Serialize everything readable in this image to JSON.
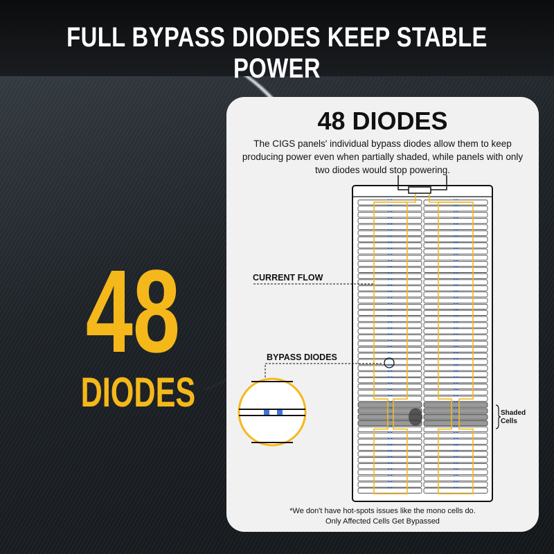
{
  "header": {
    "title": "FULL BYPASS DIODES KEEP STABLE POWER"
  },
  "hero": {
    "number": "48",
    "label": "DIODES",
    "color": "#f5b81a"
  },
  "card": {
    "title": "48 DIODES",
    "description": "The CIGS panels' individual bypass diodes allow them to keep producing power even when partially shaded, while panels with only two diodes would stop powering.",
    "footnote_line1": "*We don't have hot-spots issues like the mono cells do.",
    "footnote_line2": "Only Affected Cells Get Bypassed"
  },
  "diagram": {
    "label_current_flow": "CURRENT FLOW",
    "label_bypass_diodes": "BYPASS DIODES",
    "label_shaded_cells": "Shaded Cells",
    "rows_per_column": 48,
    "columns": 2,
    "shaded_row_count": 4,
    "flow_color": "#f5b81a",
    "diode_color": "#3a78e0"
  }
}
